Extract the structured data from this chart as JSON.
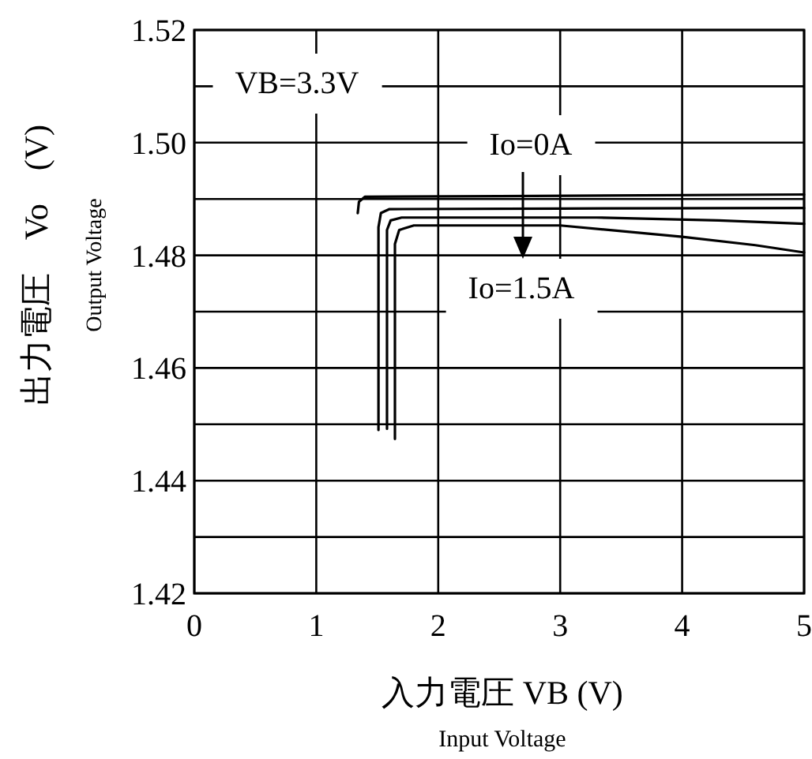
{
  "chart_data": {
    "type": "line",
    "xlabel": "入力電圧  VB (V)\nInput Voltage",
    "ylabel": "出力電圧　Vo　(V)\nOutput Voltage",
    "xlim": [
      0,
      5
    ],
    "xticks": [
      0,
      1,
      2,
      3,
      4,
      5
    ],
    "ylim": [
      1.42,
      1.52
    ],
    "yticks": [
      1.42,
      {
        "value": 1.43,
        "label": null
      },
      1.44,
      {
        "value": 1.45,
        "label": null
      },
      1.46,
      {
        "value": 1.47,
        "label": null
      },
      1.48,
      {
        "value": 1.49,
        "label": null
      },
      {
        "value": 1.5,
        "label": "1.50"
      },
      {
        "value": 1.51,
        "label": null
      },
      1.52
    ],
    "grid": true,
    "line_style": "solid",
    "marker": "none",
    "annotations": [
      "VB=3.3V",
      "Io=0A",
      "Io=1.5A"
    ],
    "series": [
      {
        "color": "#000000",
        "x": [
          1.34,
          1.35,
          1.4,
          2.5,
          5
        ],
        "values": [
          1.4875,
          1.4895,
          1.4904,
          1.4905,
          1.4908
        ]
      },
      {
        "color": "#000000",
        "x": [
          1.51,
          1.51,
          1.53,
          1.6,
          3,
          5
        ],
        "values": [
          1.449,
          1.485,
          1.4875,
          1.4882,
          1.4883,
          1.4884
        ]
      },
      {
        "color": "#000000",
        "x": [
          1.58,
          1.58,
          1.61,
          1.7,
          3.3,
          4.3,
          5
        ],
        "values": [
          1.4492,
          1.4845,
          1.4862,
          1.4867,
          1.4867,
          1.4862,
          1.4856
        ]
      },
      {
        "color": "#000000",
        "x": [
          1.645,
          1.645,
          1.68,
          1.8,
          3,
          4,
          4.6,
          5
        ],
        "values": [
          1.4474,
          1.482,
          1.4845,
          1.4853,
          1.4853,
          1.4833,
          1.4818,
          1.4805
        ]
      }
    ]
  }
}
